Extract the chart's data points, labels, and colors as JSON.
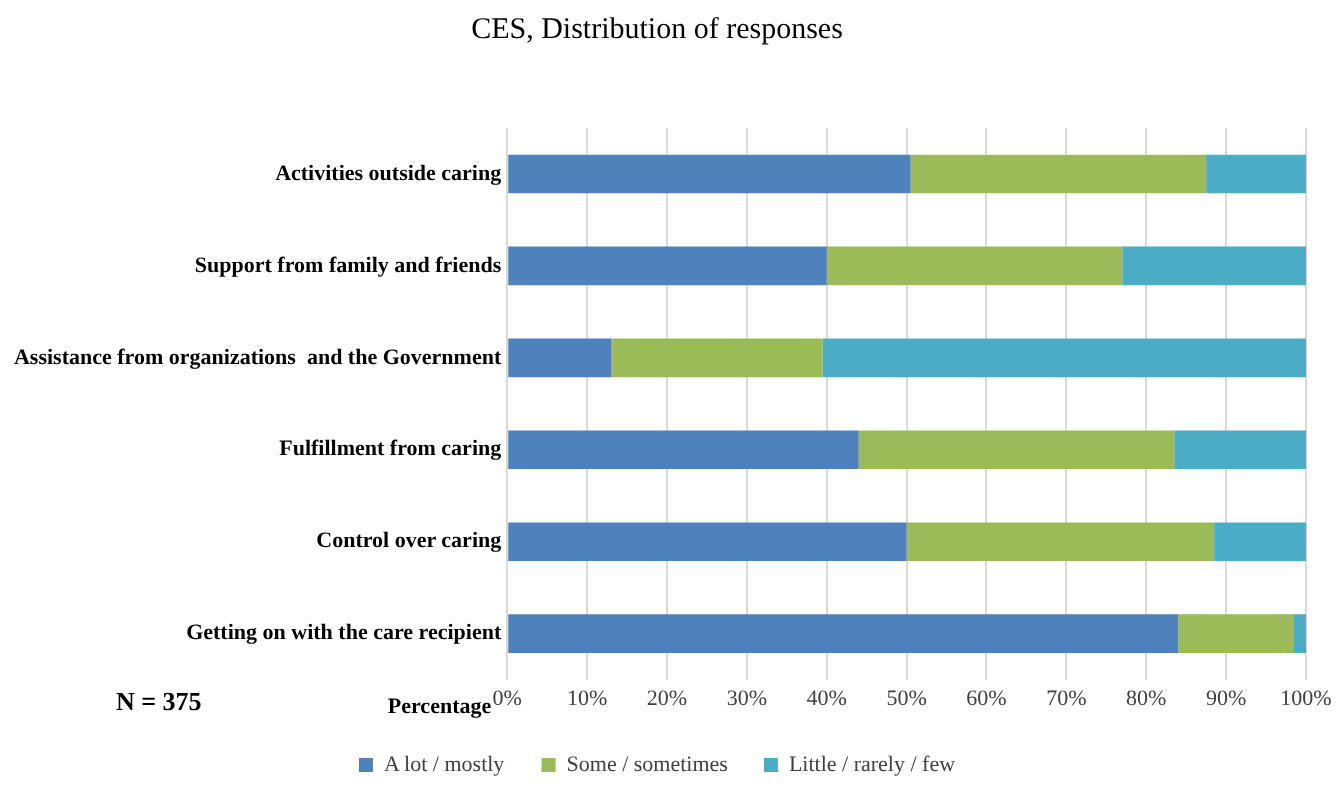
{
  "chart_data": {
    "type": "bar",
    "orientation": "horizontal",
    "stacked": true,
    "title": "CES, Distribution of responses",
    "xlabel": "Percentage",
    "annotations": [
      "N = 375"
    ],
    "categories": [
      "Activities outside caring",
      "Support from family and friends",
      "Assistance from organizations  and the Government",
      "Fulfillment from caring",
      "Control over caring",
      "Getting on with the care recipient"
    ],
    "series": [
      {
        "name": "A lot / mostly",
        "color": "#4f81bd",
        "values": [
          50.5,
          40,
          13,
          44,
          50,
          84
        ]
      },
      {
        "name": "Some / sometimes",
        "color": "#9bbb59",
        "values": [
          37,
          37,
          26.5,
          39.5,
          38.5,
          14.5
        ]
      },
      {
        "name": "Little / rarely / few",
        "color": "#4bacc6",
        "values": [
          12.5,
          23,
          60.5,
          16.5,
          11.5,
          1.5
        ]
      }
    ],
    "xlim": [
      0,
      100
    ],
    "xticks": [
      {
        "value": 0,
        "label": "0%"
      },
      {
        "value": 10,
        "label": "10%"
      },
      {
        "value": 20,
        "label": "20%"
      },
      {
        "value": 30,
        "label": "30%"
      },
      {
        "value": 40,
        "label": "40%"
      },
      {
        "value": 50,
        "label": "50%"
      },
      {
        "value": 60,
        "label": "60%"
      },
      {
        "value": 70,
        "label": "70%"
      },
      {
        "value": 80,
        "label": "80%"
      },
      {
        "value": 90,
        "label": "90%"
      },
      {
        "value": 100,
        "label": "100%"
      }
    ],
    "grid": "x",
    "legend": "bottom"
  }
}
